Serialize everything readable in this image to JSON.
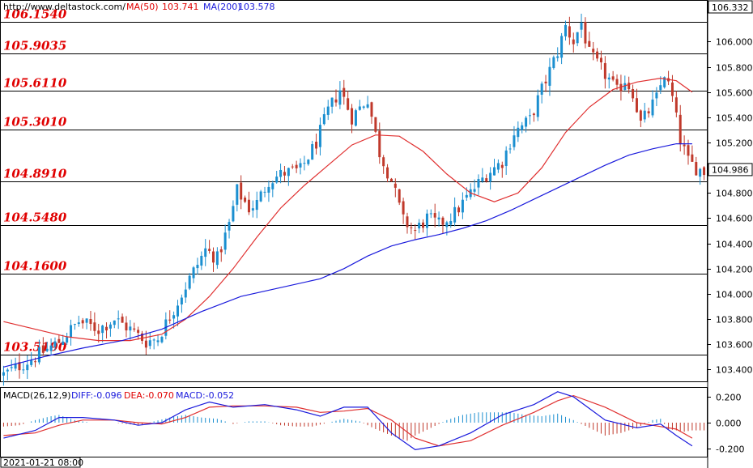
{
  "header": {
    "source": "http://www.deltastock.com/",
    "ma50_label": "MA(50)",
    "ma50_value": "103.741",
    "ma200_label": "MA(200)",
    "ma200_value": "103.578",
    "top_price": "106.332",
    "current_price": "104.986"
  },
  "macd_header": {
    "title": "MACD(26,12,9)",
    "diff": "DIFF:-0.096",
    "dea": "DEA:-0.070",
    "macd": "MACD:-0.052"
  },
  "footer": {
    "timestamp": "2021-01-21 08:00"
  },
  "colors": {
    "up": "#1b8fd0",
    "down": "#c0392b",
    "ma50": "#e03030",
    "ma200": "#1a1adc",
    "level_text": "#e00000"
  },
  "chart_data": [
    {
      "type": "candlestick",
      "ylim": [
        103.3,
        106.33
      ],
      "yticks": [
        "106.000",
        "105.800",
        "105.600",
        "105.400",
        "105.200",
        "105.000",
        "104.800",
        "104.600",
        "104.400",
        "104.200",
        "104.000",
        "103.800",
        "103.600",
        "103.400"
      ],
      "yvalues": [
        106.0,
        105.8,
        105.6,
        105.4,
        105.2,
        105.0,
        104.8,
        104.6,
        104.4,
        104.2,
        104.0,
        103.8,
        103.6,
        103.4
      ],
      "levels": [
        {
          "value": 106.154,
          "label": "106.1540"
        },
        {
          "value": 105.9035,
          "label": "105.9035"
        },
        {
          "value": 105.611,
          "label": "105.6110"
        },
        {
          "value": 105.301,
          "label": "105.3010"
        },
        {
          "value": 104.891,
          "label": "104.8910"
        },
        {
          "value": 104.548,
          "label": "104.5480"
        },
        {
          "value": 104.16,
          "label": "104.1600"
        },
        {
          "value": 103.519,
          "label": "103.5190"
        }
      ],
      "price_path": [
        [
          0,
          103.36
        ],
        [
          8,
          103.5
        ],
        [
          14,
          103.62
        ],
        [
          19,
          103.78
        ],
        [
          24,
          103.72
        ],
        [
          28,
          103.8
        ],
        [
          32,
          103.72
        ],
        [
          36,
          103.62
        ],
        [
          39,
          103.65
        ],
        [
          43,
          103.88
        ],
        [
          47,
          104.12
        ],
        [
          51,
          104.35
        ],
        [
          54,
          104.28
        ],
        [
          57,
          104.55
        ],
        [
          59,
          104.82
        ],
        [
          62,
          104.68
        ],
        [
          64,
          104.72
        ],
        [
          67,
          104.9
        ],
        [
          71,
          104.96
        ],
        [
          75,
          104.98
        ],
        [
          79,
          105.2
        ],
        [
          82,
          105.45
        ],
        [
          85,
          105.62
        ],
        [
          88,
          105.4
        ],
        [
          92,
          105.55
        ],
        [
          95,
          105.12
        ],
        [
          98,
          104.9
        ],
        [
          101,
          104.58
        ],
        [
          104,
          104.5
        ],
        [
          107,
          104.6
        ],
        [
          110,
          104.55
        ],
        [
          114,
          104.64
        ],
        [
          118,
          104.8
        ],
        [
          122,
          104.95
        ],
        [
          126,
          105.05
        ],
        [
          129,
          105.28
        ],
        [
          133,
          105.38
        ],
        [
          136,
          105.62
        ],
        [
          140,
          105.92
        ],
        [
          142,
          106.12
        ],
        [
          144,
          106.0
        ],
        [
          146,
          106.15
        ],
        [
          148,
          105.9
        ],
        [
          151,
          105.78
        ],
        [
          153,
          105.7
        ],
        [
          155,
          105.6
        ],
        [
          157,
          105.7
        ],
        [
          159,
          105.6
        ],
        [
          161,
          105.35
        ],
        [
          163,
          105.45
        ],
        [
          165,
          105.55
        ],
        [
          167,
          105.75
        ],
        [
          169,
          105.55
        ],
        [
          171,
          105.22
        ],
        [
          173,
          105.05
        ],
        [
          175,
          105.0
        ],
        [
          177,
          104.97
        ]
      ],
      "ma50_path": [
        [
          0,
          103.78
        ],
        [
          8,
          103.72
        ],
        [
          16,
          103.66
        ],
        [
          24,
          103.63
        ],
        [
          32,
          103.63
        ],
        [
          40,
          103.68
        ],
        [
          46,
          103.8
        ],
        [
          52,
          103.98
        ],
        [
          58,
          104.2
        ],
        [
          64,
          104.45
        ],
        [
          70,
          104.68
        ],
        [
          76,
          104.86
        ],
        [
          82,
          105.02
        ],
        [
          88,
          105.18
        ],
        [
          94,
          105.26
        ],
        [
          100,
          105.25
        ],
        [
          106,
          105.13
        ],
        [
          112,
          104.95
        ],
        [
          118,
          104.8
        ],
        [
          124,
          104.73
        ],
        [
          130,
          104.8
        ],
        [
          136,
          105.0
        ],
        [
          142,
          105.28
        ],
        [
          148,
          105.48
        ],
        [
          154,
          105.62
        ],
        [
          160,
          105.68
        ],
        [
          166,
          105.71
        ],
        [
          170,
          105.69
        ],
        [
          174,
          105.6
        ]
      ],
      "ma200_path": [
        [
          0,
          103.42
        ],
        [
          10,
          103.5
        ],
        [
          20,
          103.57
        ],
        [
          30,
          103.63
        ],
        [
          40,
          103.72
        ],
        [
          50,
          103.86
        ],
        [
          60,
          103.98
        ],
        [
          70,
          104.05
        ],
        [
          80,
          104.12
        ],
        [
          86,
          104.2
        ],
        [
          92,
          104.3
        ],
        [
          98,
          104.38
        ],
        [
          104,
          104.43
        ],
        [
          110,
          104.47
        ],
        [
          116,
          104.52
        ],
        [
          122,
          104.58
        ],
        [
          128,
          104.66
        ],
        [
          134,
          104.75
        ],
        [
          140,
          104.84
        ],
        [
          146,
          104.93
        ],
        [
          152,
          105.02
        ],
        [
          158,
          105.1
        ],
        [
          164,
          105.15
        ],
        [
          170,
          105.19
        ],
        [
          174,
          105.19
        ]
      ]
    },
    {
      "type": "macd",
      "ylim": [
        -0.27,
        0.27
      ],
      "yticks": [
        "0.200",
        "0.000",
        "-0.200"
      ],
      "yvalues": [
        0.2,
        0.0,
        -0.2
      ],
      "diff_path": [
        [
          0,
          -0.12
        ],
        [
          8,
          -0.06
        ],
        [
          14,
          0.04
        ],
        [
          20,
          0.04
        ],
        [
          28,
          0.02
        ],
        [
          34,
          -0.02
        ],
        [
          40,
          0.0
        ],
        [
          46,
          0.1
        ],
        [
          52,
          0.16
        ],
        [
          58,
          0.12
        ],
        [
          66,
          0.14
        ],
        [
          74,
          0.1
        ],
        [
          80,
          0.05
        ],
        [
          86,
          0.12
        ],
        [
          92,
          0.12
        ],
        [
          98,
          -0.08
        ],
        [
          104,
          -0.21
        ],
        [
          110,
          -0.18
        ],
        [
          118,
          -0.08
        ],
        [
          126,
          0.06
        ],
        [
          134,
          0.14
        ],
        [
          140,
          0.24
        ],
        [
          144,
          0.2
        ],
        [
          152,
          0.02
        ],
        [
          160,
          -0.04
        ],
        [
          166,
          -0.01
        ],
        [
          170,
          -0.1
        ],
        [
          174,
          -0.18
        ]
      ],
      "dea_path": [
        [
          0,
          -0.1
        ],
        [
          8,
          -0.08
        ],
        [
          14,
          -0.02
        ],
        [
          20,
          0.02
        ],
        [
          28,
          0.02
        ],
        [
          34,
          0.0
        ],
        [
          40,
          -0.01
        ],
        [
          46,
          0.04
        ],
        [
          52,
          0.12
        ],
        [
          58,
          0.13
        ],
        [
          66,
          0.13
        ],
        [
          74,
          0.12
        ],
        [
          80,
          0.08
        ],
        [
          86,
          0.09
        ],
        [
          92,
          0.11
        ],
        [
          98,
          0.02
        ],
        [
          104,
          -0.12
        ],
        [
          110,
          -0.18
        ],
        [
          118,
          -0.14
        ],
        [
          126,
          -0.02
        ],
        [
          134,
          0.08
        ],
        [
          140,
          0.17
        ],
        [
          144,
          0.21
        ],
        [
          152,
          0.12
        ],
        [
          160,
          0.0
        ],
        [
          166,
          -0.03
        ],
        [
          170,
          -0.05
        ],
        [
          174,
          -0.12
        ]
      ],
      "hist": [
        [
          0,
          -0.03
        ],
        [
          4,
          -0.02
        ],
        [
          8,
          0.02
        ],
        [
          12,
          0.05
        ],
        [
          14,
          0.06
        ],
        [
          18,
          0.02
        ],
        [
          22,
          0.0
        ],
        [
          28,
          0.0
        ],
        [
          34,
          -0.02
        ],
        [
          38,
          0.01
        ],
        [
          42,
          0.04
        ],
        [
          46,
          0.06
        ],
        [
          50,
          0.04
        ],
        [
          54,
          0.03
        ],
        [
          58,
          -0.01
        ],
        [
          62,
          0.01
        ],
        [
          66,
          0.01
        ],
        [
          70,
          -0.02
        ],
        [
          74,
          -0.03
        ],
        [
          78,
          -0.03
        ],
        [
          82,
          0.0
        ],
        [
          86,
          0.03
        ],
        [
          90,
          0.01
        ],
        [
          94,
          -0.05
        ],
        [
          98,
          -0.1
        ],
        [
          102,
          -0.14
        ],
        [
          104,
          -0.1
        ],
        [
          108,
          -0.04
        ],
        [
          112,
          0.02
        ],
        [
          116,
          0.06
        ],
        [
          120,
          0.08
        ],
        [
          124,
          0.08
        ],
        [
          128,
          0.08
        ],
        [
          132,
          0.06
        ],
        [
          136,
          0.05
        ],
        [
          140,
          0.07
        ],
        [
          144,
          0.02
        ],
        [
          148,
          -0.04
        ],
        [
          152,
          -0.1
        ],
        [
          156,
          -0.08
        ],
        [
          160,
          -0.04
        ],
        [
          164,
          0.02
        ],
        [
          166,
          0.03
        ],
        [
          168,
          -0.05
        ],
        [
          172,
          -0.07
        ],
        [
          174,
          -0.06
        ]
      ]
    }
  ]
}
